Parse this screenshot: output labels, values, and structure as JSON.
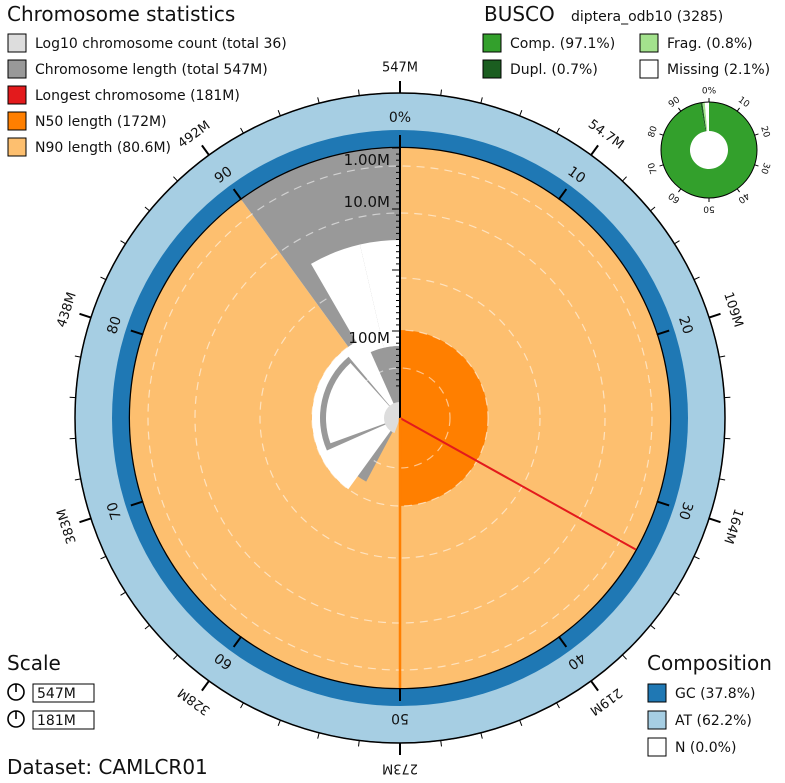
{
  "chart_data": {
    "type": "snail",
    "title": "Chromosome statistics",
    "legend": [
      {
        "label": "Log10 chromosome count (total 36)",
        "color": "#dddddd"
      },
      {
        "label": "Chromosome length (total 547M)",
        "color": "#999999"
      },
      {
        "label": "Longest chromosome (181M)",
        "color": "#e31a1c"
      },
      {
        "label": "N50 length (172M)",
        "color": "#ff7f00"
      },
      {
        "label": "N90 length (80.6M)",
        "color": "#fdbf6f"
      }
    ],
    "total_length_label": "547M",
    "outer_scale_labels": [
      "547M",
      "54.7M",
      "109M",
      "164M",
      "219M",
      "273M",
      "328M",
      "383M",
      "438M",
      "492M"
    ],
    "percent_labels": [
      "0%",
      "10",
      "20",
      "30",
      "40",
      "50",
      "60",
      "70",
      "80",
      "90"
    ],
    "log_ticks": [
      "1.00M",
      "10.0M",
      "100M"
    ],
    "percent_values": {
      "longest": 33.1,
      "n50": 50,
      "n90": 90
    },
    "busco": {
      "title": "BUSCO",
      "lineage": "diptera_odb10 (3285)",
      "legend": [
        {
          "label": "Comp. (97.1%)",
          "color": "#33a02c"
        },
        {
          "label": "Frag. (0.8%)",
          "color": "#a3e28d"
        },
        {
          "label": "Dupl. (0.7%)",
          "color": "#1b5e20"
        },
        {
          "label": "Missing (2.1%)",
          "color": "#ffffff"
        }
      ],
      "values": {
        "complete": 97.1,
        "duplicated": 0.7,
        "fragmented": 0.8,
        "missing": 2.1
      },
      "ticks": [
        "0%",
        "10",
        "20",
        "30",
        "40",
        "50",
        "60",
        "70",
        "80",
        "90"
      ]
    },
    "scale": {
      "title": "Scale",
      "items": [
        "547M",
        "181M"
      ]
    },
    "composition": {
      "title": "Composition",
      "legend": [
        {
          "label": "GC (37.8%)",
          "color": "#1f78b4"
        },
        {
          "label": "AT (62.2%)",
          "color": "#a6cee3"
        },
        {
          "label": "N (0.0%)",
          "color": "#ffffff"
        }
      ],
      "gc": 37.8,
      "at": 62.2,
      "n": 0.0
    },
    "dataset": "Dataset: CAMLCR01"
  }
}
